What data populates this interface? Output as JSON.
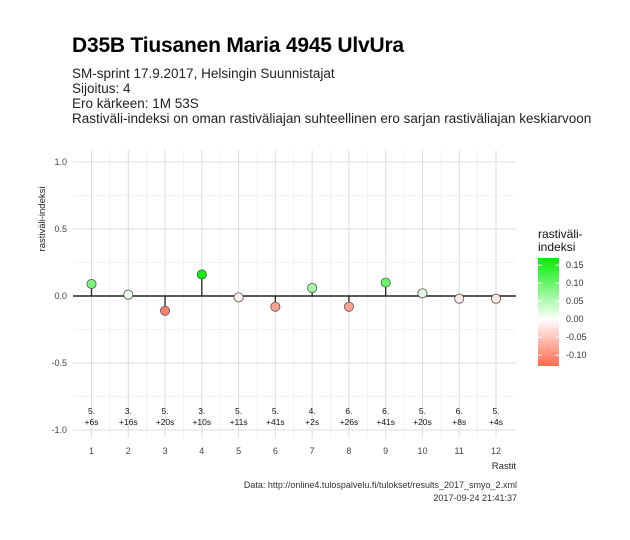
{
  "header": {
    "title": "D35B Tiusanen Maria 4945 UlvUra",
    "line1": "SM-sprint 17.9.2017, Helsingin Suunnistajat",
    "line2": "Sijoitus: 4",
    "line3": "Ero kärkeen: 1M 53S",
    "line4": "Rastiväli-indeksi on oman rastiväliajan suhteellinen ero sarjan rastiväliajan keskiarvoon"
  },
  "caption": {
    "source": "Data: http://online4.tulospalvelu.fi/tulokset/results_2017_smyo_2.xml",
    "timestamp": "2017-09-24 21:41:37"
  },
  "chart_data": {
    "type": "lollipop",
    "xlabel": "Rastit",
    "ylabel": "rastiväli-indeksi",
    "ylim": [
      -1.0,
      1.0
    ],
    "yticks": [
      -1.0,
      -0.5,
      0.0,
      0.5,
      1.0
    ],
    "ytick_labels": [
      "-1.0",
      "-0.5",
      "0.0",
      "0.5",
      "1.0"
    ],
    "x": [
      1,
      2,
      3,
      4,
      5,
      6,
      7,
      8,
      9,
      10,
      11,
      12
    ],
    "values": [
      0.09,
      0.01,
      -0.11,
      0.16,
      -0.01,
      -0.08,
      0.06,
      -0.08,
      0.1,
      0.02,
      -0.02,
      -0.02
    ],
    "rank_labels": [
      "5.",
      "3.",
      "5.",
      "3.",
      "5.",
      "5.",
      "4.",
      "6.",
      "6.",
      "5.",
      "6.",
      "5."
    ],
    "time_labels": [
      "+6s",
      "+16s",
      "+20s",
      "+10s",
      "+11s",
      "+41s",
      "+2s",
      "+26s",
      "+41s",
      "+20s",
      "+8s",
      "+4s"
    ],
    "legend": {
      "title_line1": "rastiväli-",
      "title_line2": "indeksi",
      "ticks": [
        0.15,
        0.1,
        0.05,
        0.0,
        -0.05,
        -0.1
      ],
      "tick_labels": [
        "0.15",
        "0.10",
        "0.05",
        "0.00",
        "-0.05",
        "-0.10"
      ],
      "range": [
        -0.13,
        0.17
      ],
      "placement": "right"
    },
    "colors": {
      "high": "#00ee00",
      "mid": "#ffffff",
      "low": "#ff6a4d",
      "grid_major": "#dddddd",
      "grid_minor": "#efefef",
      "zero_line": "#222222"
    },
    "grid": true
  }
}
